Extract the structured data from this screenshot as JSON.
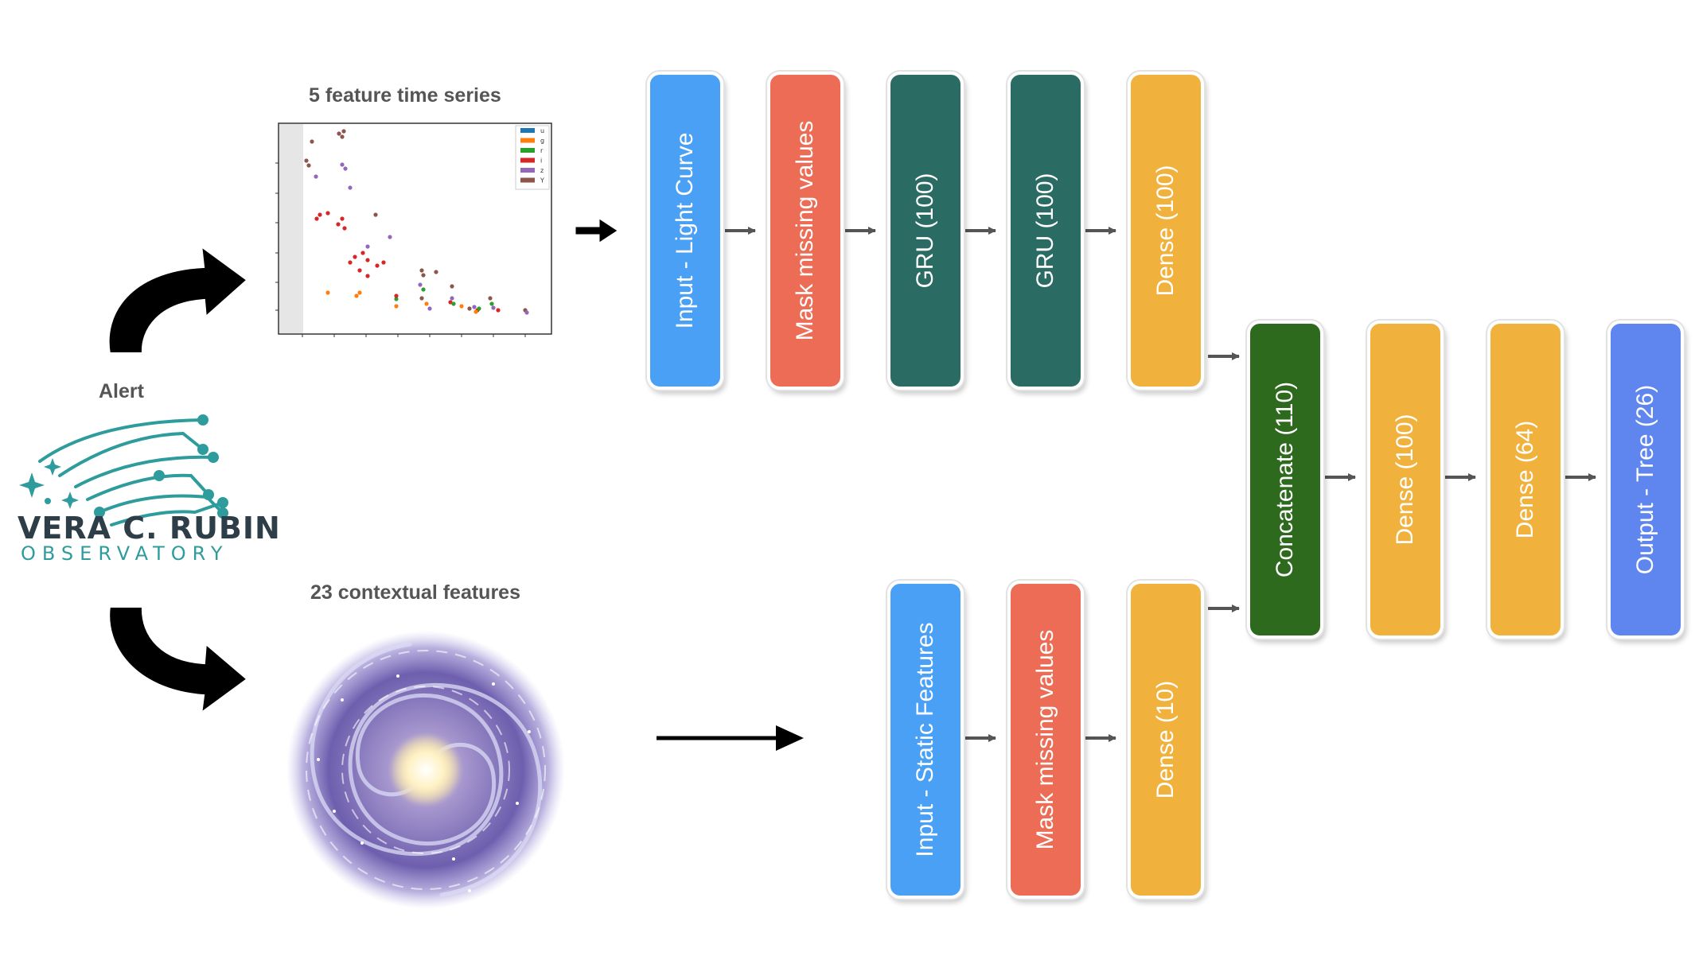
{
  "alert_label": "Alert",
  "observatory": {
    "name": "VERA C. RUBIN",
    "subtitle": "OBSERVATORY"
  },
  "time_series_title": "5 feature time series",
  "contextual_title": "23 contextual features",
  "plot_legend": [
    {
      "label": "u",
      "color": "#1f77b4"
    },
    {
      "label": "g",
      "color": "#ff7f0e"
    },
    {
      "label": "r",
      "color": "#2ca02c"
    },
    {
      "label": "i",
      "color": "#d62728"
    },
    {
      "label": "z",
      "color": "#9467bd"
    },
    {
      "label": "Y",
      "color": "#8c564b"
    }
  ],
  "top_branch": [
    {
      "label": "Input - Light Curve",
      "color": "#4aa0f5"
    },
    {
      "label": "Mask missing values",
      "color": "#ec6c55"
    },
    {
      "label": "GRU (100)",
      "color": "#2a6b64"
    },
    {
      "label": "GRU (100)",
      "color": "#2a6b64"
    },
    {
      "label": "Dense (100)",
      "color": "#f0b23d"
    }
  ],
  "bottom_branch": [
    {
      "label": "Input - Static Features",
      "color": "#4aa0f5"
    },
    {
      "label": "Mask missing values",
      "color": "#ec6c55"
    },
    {
      "label": "Dense (10)",
      "color": "#f0b23d"
    }
  ],
  "merge_branch": [
    {
      "label": "Concatenate (110)",
      "color": "#2d6a1e"
    },
    {
      "label": "Dense (100)",
      "color": "#f0b23d"
    },
    {
      "label": "Dense (64)",
      "color": "#f0b23d"
    },
    {
      "label": "Output - Tree (26)",
      "color": "#5f86ee"
    }
  ]
}
